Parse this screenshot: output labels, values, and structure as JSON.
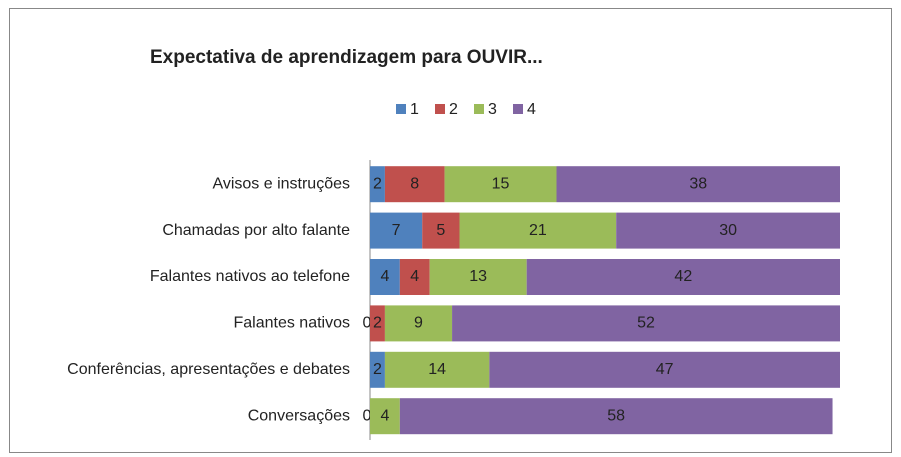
{
  "chart_data": {
    "type": "stacked_bar_horizontal",
    "title": "Expectativa de aprendizagem para OUVIR...",
    "categories": [
      "Avisos e instruções",
      "Chamadas por alto falante",
      "Falantes nativos ao telefone",
      "Falantes nativos",
      "Conferências, apresentações e debates",
      "Conversações"
    ],
    "series": [
      {
        "name": "1",
        "color": "#4f81bd",
        "values": [
          2,
          7,
          4,
          0,
          2,
          0
        ]
      },
      {
        "name": "2",
        "color": "#c0504d",
        "values": [
          8,
          5,
          4,
          2,
          0,
          0
        ]
      },
      {
        "name": "3",
        "color": "#9bbb59",
        "values": [
          15,
          21,
          13,
          9,
          14,
          4
        ]
      },
      {
        "name": "4",
        "color": "#8064a2",
        "values": [
          38,
          30,
          42,
          52,
          47,
          58
        ]
      }
    ],
    "xlim": [
      0,
      63
    ],
    "legend": "top"
  }
}
